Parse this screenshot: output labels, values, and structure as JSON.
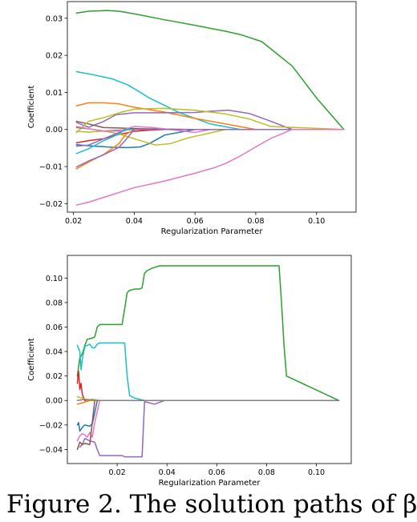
{
  "palette": [
    "#1f77b4",
    "#ff7f0e",
    "#2ca02c",
    "#d62728",
    "#9467bd",
    "#8c564b",
    "#e377c2",
    "#7f7f7f",
    "#bcbd22",
    "#17becf"
  ],
  "caption": "Figure 2. The solution paths of β",
  "chart_data": [
    {
      "type": "line",
      "title": "",
      "xlabel": "Regularization Parameter",
      "ylabel": "Coefficient",
      "xlim": [
        0.018,
        0.113
      ],
      "ylim": [
        -0.0223,
        0.0345
      ],
      "xticks": [
        0.02,
        0.04,
        0.06,
        0.08,
        0.1
      ],
      "xtick_labels": [
        "0.02",
        "0.04",
        "0.06",
        "0.08",
        "0.10"
      ],
      "yticks": [
        -0.02,
        -0.01,
        0.0,
        0.01,
        0.02,
        0.03
      ],
      "ytick_labels": [
        "−0.02",
        "−0.01",
        "0.00",
        "0.01",
        "0.02",
        "0.03"
      ],
      "grid": false,
      "series": [
        {
          "color": "#2ca02c",
          "x": [
            0.021,
            0.025,
            0.031,
            0.035,
            0.04,
            0.05,
            0.06,
            0.07,
            0.075,
            0.082,
            0.092,
            0.1,
            0.109
          ],
          "y": [
            0.0314,
            0.0319,
            0.0321,
            0.0319,
            0.0312,
            0.0296,
            0.0281,
            0.0265,
            0.0256,
            0.0237,
            0.0171,
            0.0085,
            0.0
          ]
        },
        {
          "color": "#17becf",
          "x": [
            0.021,
            0.027,
            0.033,
            0.038,
            0.045,
            0.055,
            0.065,
            0.075,
            0.085,
            0.109
          ],
          "y": [
            0.0156,
            0.0147,
            0.0136,
            0.012,
            0.0085,
            0.0045,
            0.0015,
            0.0,
            0.0,
            0.0
          ]
        },
        {
          "color": "#ff7f0e",
          "x": [
            0.021,
            0.025,
            0.03,
            0.035,
            0.04,
            0.05,
            0.06,
            0.07,
            0.08,
            0.109
          ],
          "y": [
            0.0064,
            0.0072,
            0.0072,
            0.0069,
            0.006,
            0.0047,
            0.003,
            0.0015,
            0.0,
            0.0
          ]
        },
        {
          "color": "#9467bd",
          "x": [
            0.021,
            0.025,
            0.03,
            0.034,
            0.04,
            0.05,
            0.06,
            0.065,
            0.071,
            0.078,
            0.085,
            0.092,
            0.109
          ],
          "y": [
            0.0019,
            0.0006,
            0.0022,
            0.004,
            0.0045,
            0.0045,
            0.0046,
            0.0049,
            0.0052,
            0.0043,
            0.0022,
            0.0,
            0.0
          ]
        },
        {
          "color": "#8c564b",
          "x": [
            0.021,
            0.025,
            0.03,
            0.035,
            0.042,
            0.05,
            0.06,
            0.07,
            0.08,
            0.109
          ],
          "y": [
            0.0022,
            0.0015,
            0.0005,
            0.0004,
            0.0002,
            0.0001,
            0.0,
            0.0,
            0.0,
            0.0
          ]
        },
        {
          "color": "#bcbd22",
          "x": [
            0.021,
            0.025,
            0.03,
            0.035,
            0.04,
            0.05,
            0.06,
            0.07,
            0.078,
            0.085,
            0.109
          ],
          "y": [
            -0.0008,
            0.0022,
            0.0032,
            0.0045,
            0.0055,
            0.0057,
            0.0052,
            0.0042,
            0.0028,
            0.0008,
            0.0
          ]
        },
        {
          "color": "#d62728",
          "x": [
            0.021,
            0.025,
            0.03,
            0.034,
            0.04,
            0.045,
            0.05,
            0.06,
            0.109
          ],
          "y": [
            -0.0036,
            -0.003,
            -0.0025,
            -0.0015,
            -0.0005,
            -0.0002,
            0.0,
            0.0,
            0.0
          ]
        },
        {
          "color": "#7f7f7f",
          "x": [
            0.021,
            0.025,
            0.03,
            0.035,
            0.04,
            0.05,
            0.06,
            0.109
          ],
          "y": [
            0.0005,
            0.0002,
            -0.0004,
            -0.0002,
            0.0,
            0.0,
            0.0,
            0.0
          ]
        },
        {
          "color": "#1f77b4",
          "x": [
            0.021,
            0.027,
            0.033,
            0.038,
            0.042,
            0.045,
            0.05,
            0.06,
            0.109
          ],
          "y": [
            -0.0041,
            -0.0045,
            -0.0048,
            -0.0049,
            -0.0047,
            -0.0038,
            -0.0015,
            0.0,
            0.0
          ]
        },
        {
          "color": "#bcbd22",
          "x": [
            0.021,
            0.025,
            0.03,
            0.035,
            0.04,
            0.047,
            0.052,
            0.058,
            0.062,
            0.07,
            0.109
          ],
          "y": [
            -0.0005,
            -0.0007,
            -0.0004,
            -0.0012,
            -0.0025,
            -0.0042,
            -0.0038,
            -0.0022,
            -0.0015,
            0.0,
            0.0
          ]
        },
        {
          "color": "#9467bd",
          "x": [
            0.021,
            0.025,
            0.03,
            0.035,
            0.038,
            0.042,
            0.05,
            0.06,
            0.109
          ],
          "y": [
            -0.0045,
            -0.0042,
            -0.0025,
            -0.0008,
            0.0,
            0.0,
            0.0,
            0.0,
            0.0
          ]
        },
        {
          "color": "#e377c2",
          "x": [
            0.021,
            0.025,
            0.03,
            0.035,
            0.04,
            0.045,
            0.05,
            0.06,
            0.065,
            0.109
          ],
          "y": [
            0.0008,
            0.0002,
            -0.0005,
            -0.0004,
            0.0008,
            0.0006,
            0.0002,
            -0.0008,
            0.0,
            0.0
          ]
        },
        {
          "color": "#ff7f0e",
          "x": [
            0.021,
            0.025,
            0.03,
            0.035,
            0.037,
            0.04,
            0.05,
            0.109
          ],
          "y": [
            -0.0106,
            -0.0088,
            -0.0067,
            -0.0038,
            -0.0015,
            0.0,
            0.0,
            0.0
          ]
        },
        {
          "color": "#17becf",
          "x": [
            0.021,
            0.025,
            0.03,
            0.035,
            0.037,
            0.04,
            0.05,
            0.109
          ],
          "y": [
            -0.0065,
            -0.0052,
            -0.003,
            -0.0012,
            0.0,
            0.0,
            0.0,
            0.0
          ]
        },
        {
          "color": "#9467bd",
          "x": [
            0.021,
            0.025,
            0.03,
            0.035,
            0.037,
            0.04,
            0.05,
            0.109
          ],
          "y": [
            -0.0101,
            -0.0085,
            -0.0068,
            -0.0048,
            -0.003,
            0.0,
            0.0,
            0.0
          ]
        },
        {
          "color": "#e377c2",
          "x": [
            0.021,
            0.025,
            0.03,
            0.035,
            0.04,
            0.05,
            0.06,
            0.066,
            0.07,
            0.075,
            0.08,
            0.085,
            0.092,
            0.109
          ],
          "y": [
            -0.0204,
            -0.0196,
            -0.0183,
            -0.017,
            -0.0157,
            -0.0139,
            -0.0118,
            -0.0104,
            -0.0092,
            -0.0071,
            -0.0047,
            -0.0024,
            0.0,
            0.0
          ]
        }
      ]
    },
    {
      "type": "line",
      "title": "",
      "xlabel": "Regularization Parameter",
      "ylabel": "Coefficient",
      "xlim": [
        0.0,
        0.114
      ],
      "ylim": [
        -0.0515,
        0.1185
      ],
      "xticks": [
        0.02,
        0.04,
        0.06,
        0.08,
        0.1
      ],
      "xtick_labels": [
        "0.02",
        "0.04",
        "0.06",
        "0.08",
        "0.10"
      ],
      "yticks": [
        -0.04,
        -0.02,
        0.0,
        0.02,
        0.04,
        0.06,
        0.08,
        0.1
      ],
      "ytick_labels": [
        "−0.04",
        "−0.02",
        "0.00",
        "0.02",
        "0.04",
        "0.06",
        "0.08",
        "0.10"
      ],
      "grid": false,
      "series": [
        {
          "color": "#2ca02c",
          "x": [
            0.004,
            0.005,
            0.006,
            0.007,
            0.008,
            0.01,
            0.011,
            0.012,
            0.013,
            0.022,
            0.024,
            0.025,
            0.027,
            0.029,
            0.03,
            0.031,
            0.032,
            0.034,
            0.037,
            0.04,
            0.085,
            0.086,
            0.087,
            0.088,
            0.109
          ],
          "y": [
            0.02,
            0.035,
            0.038,
            0.045,
            0.05,
            0.051,
            0.052,
            0.06,
            0.062,
            0.062,
            0.088,
            0.09,
            0.091,
            0.091,
            0.092,
            0.104,
            0.106,
            0.108,
            0.11,
            0.11,
            0.11,
            0.08,
            0.045,
            0.02,
            0.0
          ]
        },
        {
          "color": "#17becf",
          "x": [
            0.004,
            0.005,
            0.0055,
            0.006,
            0.007,
            0.009,
            0.01,
            0.011,
            0.012,
            0.013,
            0.023,
            0.024,
            0.025,
            0.027,
            0.029,
            0.031,
            0.109
          ],
          "y": [
            0.045,
            0.04,
            0.025,
            0.034,
            0.044,
            0.046,
            0.043,
            0.043,
            0.046,
            0.047,
            0.047,
            0.02,
            0.004,
            0.002,
            0.001,
            0.0,
            0.0
          ]
        },
        {
          "color": "#9467bd",
          "x": [
            0.005,
            0.006,
            0.007,
            0.009,
            0.011,
            0.012,
            0.013,
            0.015,
            0.022,
            0.023,
            0.029,
            0.03,
            0.031,
            0.033,
            0.035,
            0.039,
            0.109
          ],
          "y": [
            -0.038,
            -0.036,
            -0.031,
            -0.033,
            -0.034,
            -0.04,
            -0.045,
            -0.045,
            -0.045,
            -0.046,
            -0.046,
            -0.046,
            -0.001,
            -0.002,
            -0.003,
            0.0,
            0.0
          ]
        },
        {
          "color": "#e377c2",
          "x": [
            0.004,
            0.005,
            0.006,
            0.007,
            0.008,
            0.009,
            0.01,
            0.011,
            0.013,
            0.109
          ],
          "y": [
            -0.033,
            -0.029,
            -0.027,
            -0.028,
            -0.03,
            -0.026,
            -0.03,
            -0.018,
            0.0,
            0.0
          ]
        },
        {
          "color": "#1f77b4",
          "x": [
            0.004,
            0.0045,
            0.005,
            0.006,
            0.007,
            0.009,
            0.01,
            0.011,
            0.012,
            0.109
          ],
          "y": [
            -0.02,
            -0.018,
            -0.025,
            -0.022,
            -0.02,
            -0.021,
            -0.019,
            -0.01,
            0.0,
            0.0
          ]
        },
        {
          "color": "#8c564b",
          "x": [
            0.004,
            0.005,
            0.006,
            0.007,
            0.009,
            0.011,
            0.109
          ],
          "y": [
            -0.04,
            -0.034,
            -0.036,
            -0.035,
            -0.036,
            0.0,
            0.0
          ]
        },
        {
          "color": "#d62728",
          "x": [
            0.004,
            0.0045,
            0.005,
            0.0055,
            0.006,
            0.007,
            0.008,
            0.109
          ],
          "y": [
            0.014,
            0.024,
            0.009,
            0.014,
            0.005,
            0.0,
            0.0,
            0.0
          ]
        },
        {
          "color": "#bcbd22",
          "x": [
            0.004,
            0.006,
            0.008,
            0.01,
            0.013,
            0.109
          ],
          "y": [
            0.003,
            0.002,
            0.0,
            0.001,
            0.0,
            0.0
          ]
        },
        {
          "color": "#ff7f0e",
          "x": [
            0.004,
            0.006,
            0.009,
            0.012,
            0.109
          ],
          "y": [
            -0.003,
            -0.002,
            0.0,
            0.0,
            0.0
          ]
        },
        {
          "color": "#7f7f7f",
          "x": [
            0.004,
            0.007,
            0.012,
            0.109
          ],
          "y": [
            0.0,
            0.001,
            0.0,
            0.0
          ]
        }
      ]
    }
  ]
}
